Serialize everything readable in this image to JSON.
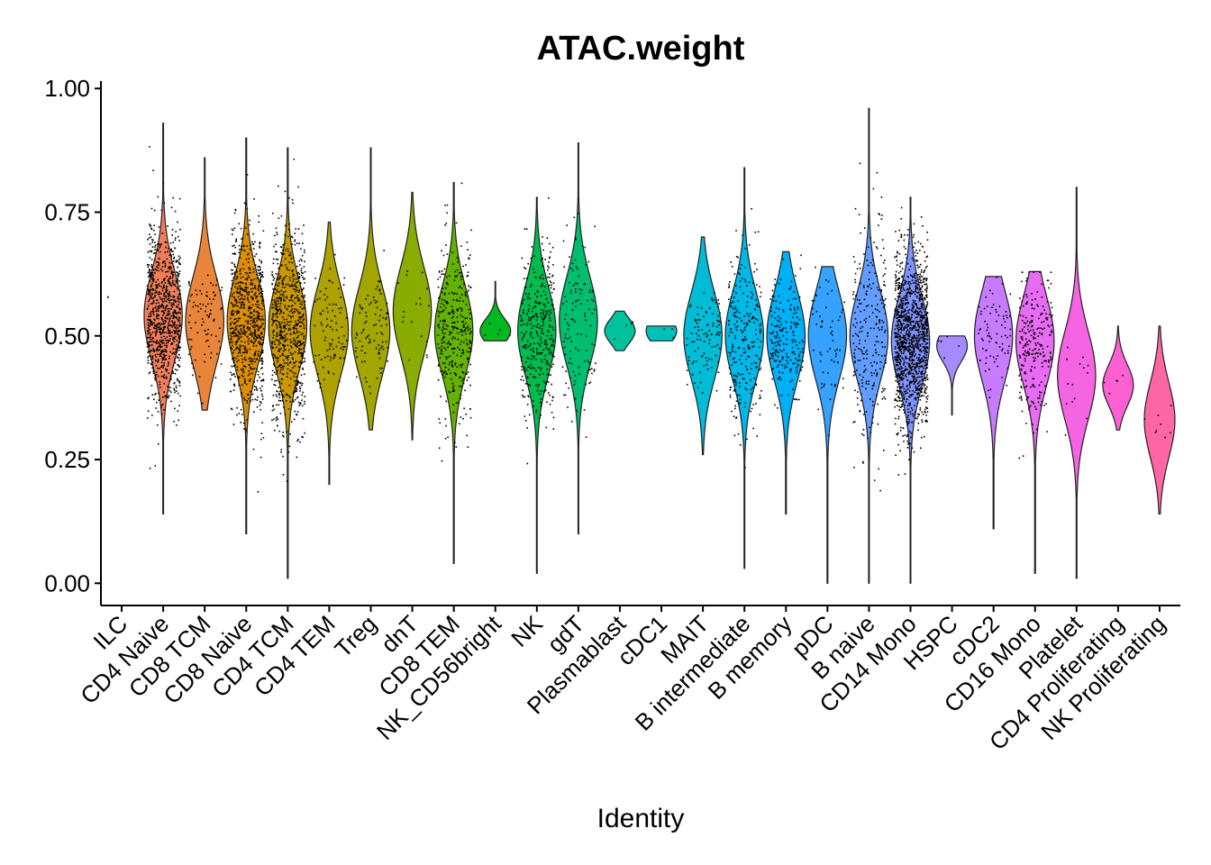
{
  "chart_data": {
    "type": "violin",
    "title": "ATAC.weight",
    "xlabel": "Identity",
    "ylabel": "",
    "ylim": [
      -0.045,
      1.015
    ],
    "yticks": [
      0.0,
      0.25,
      0.5,
      0.75,
      1.0
    ],
    "ytick_labels": [
      "0.00",
      "0.25",
      "0.50",
      "0.75",
      "1.00"
    ],
    "legend": "none",
    "series": [
      {
        "name": "ILC",
        "color": "#F8766D",
        "min": 0.58,
        "max": 0.58,
        "center": 0.58,
        "n_points": 1
      },
      {
        "name": "CD4 Naive",
        "color": "#F07E5B",
        "min": 0.14,
        "max": 0.93,
        "center": 0.54,
        "n_points": 900
      },
      {
        "name": "CD8 TCM",
        "color": "#E8853A",
        "min": 0.35,
        "max": 0.86,
        "center": 0.53,
        "n_points": 90
      },
      {
        "name": "CD8 Naive",
        "color": "#DB8E00",
        "min": 0.1,
        "max": 0.9,
        "center": 0.53,
        "n_points": 700
      },
      {
        "name": "CD4 TCM",
        "color": "#C99800",
        "min": 0.01,
        "max": 0.88,
        "center": 0.52,
        "n_points": 700
      },
      {
        "name": "CD4 TEM",
        "color": "#AEA200",
        "min": 0.2,
        "max": 0.73,
        "center": 0.51,
        "n_points": 90
      },
      {
        "name": "Treg",
        "color": "#A3A500",
        "min": 0.31,
        "max": 0.88,
        "center": 0.51,
        "n_points": 90
      },
      {
        "name": "dnT",
        "color": "#8AAB00",
        "min": 0.29,
        "max": 0.79,
        "center": 0.55,
        "n_points": 18
      },
      {
        "name": "CD8 TEM",
        "color": "#64B200",
        "min": 0.04,
        "max": 0.81,
        "center": 0.51,
        "n_points": 350
      },
      {
        "name": "NK_CD56bright",
        "color": "#00B81F",
        "min": 0.49,
        "max": 0.61,
        "center": 0.51,
        "n_points": 5
      },
      {
        "name": "NK",
        "color": "#00BB4E",
        "min": 0.02,
        "max": 0.78,
        "center": 0.51,
        "n_points": 350
      },
      {
        "name": "gdT",
        "color": "#00BE70",
        "min": 0.1,
        "max": 0.89,
        "center": 0.53,
        "n_points": 120
      },
      {
        "name": "Plasmablast",
        "color": "#00C19C",
        "min": 0.47,
        "max": 0.55,
        "center": 0.51,
        "n_points": 4
      },
      {
        "name": "cDC1",
        "color": "#00C0B8",
        "min": 0.49,
        "max": 0.52,
        "center": 0.51,
        "n_points": 3
      },
      {
        "name": "MAIT",
        "color": "#00BCD6",
        "min": 0.26,
        "max": 0.7,
        "center": 0.5,
        "n_points": 100
      },
      {
        "name": "B intermediate",
        "color": "#00B8E7",
        "min": 0.03,
        "max": 0.84,
        "center": 0.5,
        "n_points": 250
      },
      {
        "name": "B memory",
        "color": "#00B0F6",
        "min": 0.14,
        "max": 0.67,
        "center": 0.5,
        "n_points": 200
      },
      {
        "name": "pDC",
        "color": "#35A2FF",
        "min": 0.0,
        "max": 0.64,
        "center": 0.5,
        "n_points": 60
      },
      {
        "name": "B naive",
        "color": "#619CFF",
        "min": 0.0,
        "max": 0.96,
        "center": 0.5,
        "n_points": 250
      },
      {
        "name": "CD14 Mono",
        "color": "#7F94FF",
        "min": 0.0,
        "max": 0.78,
        "center": 0.49,
        "n_points": 1300
      },
      {
        "name": "HSPC",
        "color": "#A58AFF",
        "min": 0.34,
        "max": 0.5,
        "center": 0.48,
        "n_points": 6
      },
      {
        "name": "cDC2",
        "color": "#C77CFF",
        "min": 0.11,
        "max": 0.62,
        "center": 0.5,
        "n_points": 80
      },
      {
        "name": "CD16 Mono",
        "color": "#E76BF3",
        "min": 0.02,
        "max": 0.63,
        "center": 0.49,
        "n_points": 250
      },
      {
        "name": "Platelet",
        "color": "#F564E3",
        "min": 0.01,
        "max": 0.8,
        "center": 0.42,
        "n_points": 14
      },
      {
        "name": "CD4 Proliferating",
        "color": "#FD61D1",
        "min": 0.31,
        "max": 0.52,
        "center": 0.4,
        "n_points": 5
      },
      {
        "name": "NK Proliferating",
        "color": "#FF67A4",
        "min": 0.14,
        "max": 0.52,
        "center": 0.33,
        "n_points": 8
      }
    ]
  }
}
